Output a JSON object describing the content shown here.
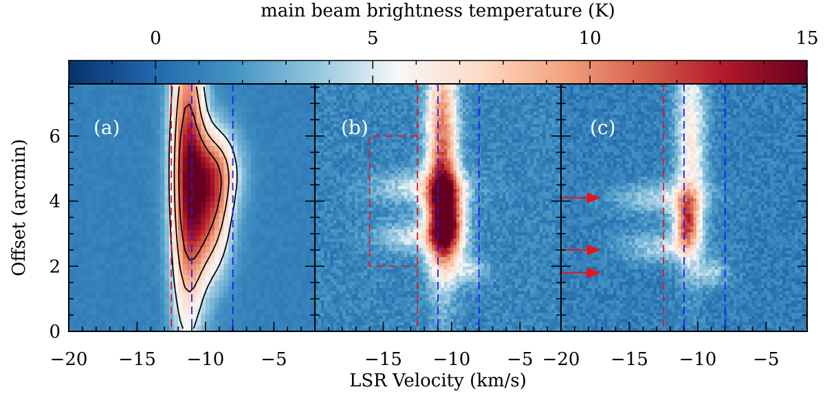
{
  "chart_data": {
    "type": "heatmap",
    "colorbar": {
      "label": "main beam brightness temperature (K)",
      "range": [
        -2.0,
        15.0
      ],
      "ticks": [
        "0",
        "5",
        "10",
        "15"
      ],
      "tick_values": [
        0,
        5,
        10,
        15
      ],
      "colormap": [
        "#08306b",
        "#2166ac",
        "#4393c3",
        "#92c5de",
        "#f7f7f7",
        "#fddbc7",
        "#f4a582",
        "#d6604d",
        "#b2182b",
        "#67001f"
      ]
    },
    "xlabel": "LSR Velocity (km/s)",
    "ylabel": "Offset (arcmin)",
    "xlim": [
      -20,
      -2
    ],
    "ylim": [
      0,
      7.6
    ],
    "panels": [
      {
        "label": "(a)",
        "x_tick_labels": [
          "−20",
          "−15",
          "−10",
          "−5"
        ],
        "x_tick_values": [
          -20,
          -15,
          -10,
          -5
        ],
        "y_tick_labels": [
          "0",
          "2",
          "4",
          "6"
        ],
        "y_tick_values": [
          0,
          2,
          4,
          6
        ],
        "red_dashed_lines_kms": [
          -12.5
        ],
        "blue_dashed_lines_kms": [
          -11.0,
          -8.0
        ],
        "contour_levels_K": [
          5,
          8,
          11
        ],
        "emission": [
          {
            "v": -11.3,
            "sv": 0.9,
            "y": 5.0,
            "sy": 3.5,
            "amp": 11.5
          },
          {
            "v": -9.6,
            "sv": 1.1,
            "y": 3.6,
            "sy": 1.4,
            "amp": 8.0
          },
          {
            "v": -9.2,
            "sv": 1.3,
            "y": 5.0,
            "sy": 0.9,
            "amp": 5.5
          }
        ],
        "background_K": 1.0
      },
      {
        "label": "(b)",
        "x_tick_labels": [
          "−15",
          "−10",
          "−5"
        ],
        "x_tick_values": [
          -15,
          -10,
          -5
        ],
        "red_dashed_lines_kms": [
          -12.5
        ],
        "blue_dashed_lines_kms": [
          -11.0,
          -8.0
        ],
        "red_box": {
          "v_min": -16.0,
          "v_max": -12.5,
          "y_min": 2.0,
          "y_max": 6.0
        },
        "emission": [
          {
            "v": -10.7,
            "sv": 0.8,
            "y": 5.5,
            "sy": 2.6,
            "amp": 9.5
          },
          {
            "v": -10.4,
            "sv": 0.9,
            "y": 3.4,
            "sy": 0.9,
            "amp": 11.0
          },
          {
            "v": -12.2,
            "sv": 2.4,
            "y": 4.4,
            "sy": 0.35,
            "amp": 4.0
          },
          {
            "v": -12.8,
            "sv": 2.0,
            "y": 2.9,
            "sy": 0.35,
            "amp": 3.5
          },
          {
            "v": -8.6,
            "sv": 0.9,
            "y": 1.9,
            "sy": 0.3,
            "amp": 3.0
          }
        ],
        "background_K": 1.2
      },
      {
        "label": "(c)",
        "x_tick_labels": [
          "−20",
          "−15",
          "−10",
          "−5"
        ],
        "x_tick_values": [
          -20,
          -15,
          -10,
          -5
        ],
        "red_dashed_lines_kms": [
          -12.5
        ],
        "blue_dashed_lines_kms": [
          -11.0,
          -8.0
        ],
        "arrows_offset_arcmin": [
          4.1,
          2.5,
          1.8
        ],
        "emission": [
          {
            "v": -10.5,
            "sv": 0.8,
            "y": 5.8,
            "sy": 2.5,
            "amp": 5.5
          },
          {
            "v": -10.8,
            "sv": 0.6,
            "y": 3.3,
            "sy": 0.6,
            "amp": 8.0
          },
          {
            "v": -12.5,
            "sv": 2.4,
            "y": 4.1,
            "sy": 0.35,
            "amp": 3.5
          },
          {
            "v": -12.8,
            "sv": 2.0,
            "y": 2.6,
            "sy": 0.35,
            "amp": 3.2
          },
          {
            "v": -9.0,
            "sv": 0.9,
            "y": 1.8,
            "sy": 0.3,
            "amp": 3.0
          }
        ],
        "background_K": 0.9
      }
    ]
  }
}
